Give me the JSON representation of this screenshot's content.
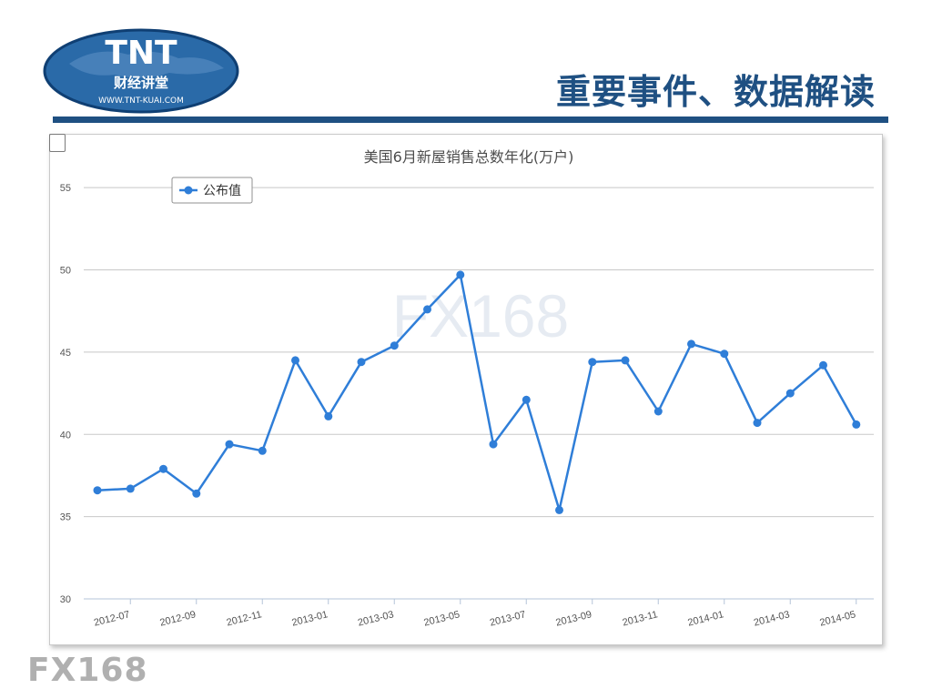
{
  "slide": {
    "title": "重要事件、数据解读",
    "logo_main": "TNT",
    "logo_sub": "财经讲堂",
    "logo_url": "WWW.TNT-KUAI.COM",
    "footer_logo": "FX168"
  },
  "colors": {
    "accent": "#1f5082",
    "series": "#2f7ed8"
  },
  "chart_data": {
    "type": "line",
    "title": "美国6月新屋销售总数年化(万户)",
    "watermark": "FX168",
    "legend": {
      "position": "top-left",
      "entries": [
        "公布值"
      ]
    },
    "grid": true,
    "ylim": [
      30,
      57
    ],
    "yticks": [
      30,
      35,
      40,
      45,
      50,
      55
    ],
    "xticks": [
      "2012-07",
      "2012-09",
      "2012-11",
      "2013-01",
      "2013-03",
      "2013-05",
      "2013-07",
      "2013-09",
      "2013-11",
      "2014-01",
      "2014-03",
      "2014-05"
    ],
    "x": [
      "2012-06",
      "2012-07",
      "2012-08",
      "2012-09",
      "2012-10",
      "2012-11",
      "2012-12",
      "2013-01",
      "2013-02",
      "2013-03",
      "2013-04",
      "2013-05",
      "2013-06",
      "2013-07",
      "2013-08",
      "2013-09",
      "2013-10",
      "2013-11",
      "2013-12",
      "2014-01",
      "2014-02",
      "2014-03",
      "2014-04",
      "2014-05",
      "2014-06"
    ],
    "series": [
      {
        "name": "公布值",
        "values": [
          36.6,
          36.7,
          37.9,
          36.4,
          39.4,
          39.0,
          44.5,
          41.1,
          44.4,
          45.4,
          47.6,
          49.7,
          39.4,
          42.1,
          35.4,
          44.4,
          44.5,
          41.4,
          45.5,
          44.9,
          40.7,
          42.5,
          44.2,
          40.6,
          null
        ]
      }
    ]
  }
}
